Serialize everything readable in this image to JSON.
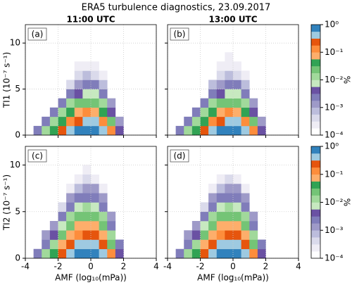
{
  "title": "ERA5 turbulence diagnostics, 23.09.2017",
  "colormap": {
    "clim": [
      0.0001,
      1
    ],
    "log_scale": true,
    "label": "%",
    "colors": [
      "#ffffff",
      "#efedf5",
      "#dadaeb",
      "#bcbddc",
      "#9e9ac8",
      "#807dba",
      "#6a51a3",
      "#c7e9c0",
      "#a1d99b",
      "#74c476",
      "#31a354",
      "#fdae6b",
      "#fd8d3c",
      "#e6550d",
      "#9ecae1",
      "#3182bd"
    ],
    "ticks": [
      {
        "value": 0.0001,
        "label": "10⁻⁴"
      },
      {
        "value": 0.001,
        "label": "10⁻³"
      },
      {
        "value": 0.01,
        "label": "10⁻²"
      },
      {
        "value": 0.1,
        "label": "10⁻¹"
      },
      {
        "value": 1,
        "label": "10⁰"
      }
    ]
  },
  "chart_data": [
    {
      "type": "heatmap",
      "title": "11:00 UTC",
      "panel_label": "(a)",
      "ylabel": "TI1 (10⁻⁷ s⁻¹)",
      "show_xticklabels": false,
      "show_yticklabels": true,
      "grid": true,
      "xlim": [
        -4,
        4
      ],
      "xticks": [
        -4,
        -2,
        0,
        2,
        4
      ],
      "ylim": [
        0,
        12
      ],
      "yticks": [
        0,
        5,
        10
      ],
      "x_bins": [
        -3.5,
        -3,
        -2.5,
        -2,
        -1.5,
        -1,
        -0.5,
        0,
        0.5,
        1,
        1.5,
        2
      ],
      "y_bins": [
        0,
        1,
        2,
        3,
        4,
        5,
        6,
        7,
        8,
        9,
        10
      ],
      "values": [
        [
          0.002,
          0.01,
          0.05,
          0.2,
          0.5,
          0.8,
          1.0,
          0.9,
          0.5,
          0.1,
          0.005
        ],
        [
          null,
          0.002,
          0.01,
          0.05,
          0.15,
          0.3,
          0.4,
          0.35,
          0.15,
          0.02,
          0.001
        ],
        [
          null,
          null,
          0.002,
          0.01,
          0.04,
          0.08,
          0.1,
          0.09,
          0.04,
          0.005,
          null
        ],
        [
          null,
          null,
          null,
          0.002,
          0.01,
          0.02,
          0.03,
          0.025,
          0.01,
          0.001,
          null
        ],
        [
          null,
          null,
          null,
          null,
          0.002,
          0.005,
          0.008,
          0.007,
          0.003,
          null,
          null
        ],
        [
          null,
          null,
          null,
          null,
          0.0005,
          0.0015,
          0.002,
          0.002,
          0.0008,
          null,
          null
        ],
        [
          null,
          null,
          null,
          null,
          null,
          0.0004,
          0.0006,
          0.0005,
          0.0002,
          null,
          null
        ],
        [
          null,
          null,
          null,
          null,
          null,
          0.0002,
          0.0003,
          0.0002,
          null,
          null,
          null
        ],
        [
          null,
          null,
          null,
          null,
          null,
          null,
          null,
          null,
          null,
          null,
          null
        ],
        [
          null,
          null,
          null,
          null,
          null,
          null,
          null,
          null,
          null,
          null,
          null
        ]
      ]
    },
    {
      "type": "heatmap",
      "title": "13:00 UTC",
      "panel_label": "(b)",
      "show_xticklabels": false,
      "show_yticklabels": false,
      "grid": true,
      "xlim": [
        -4,
        4
      ],
      "xticks": [
        -4,
        -2,
        0,
        2,
        4
      ],
      "ylim": [
        0,
        12
      ],
      "yticks": [
        0,
        5,
        10
      ],
      "x_bins": [
        -3.5,
        -3,
        -2.5,
        -2,
        -1.5,
        -1,
        -0.5,
        0,
        0.5,
        1,
        1.5,
        2
      ],
      "y_bins": [
        0,
        1,
        2,
        3,
        4,
        5,
        6,
        7,
        8,
        9,
        10
      ],
      "values": [
        [
          0.002,
          0.01,
          0.05,
          0.2,
          0.5,
          0.8,
          1.0,
          0.9,
          0.5,
          0.1,
          0.004
        ],
        [
          null,
          0.002,
          0.01,
          0.05,
          0.15,
          0.3,
          0.4,
          0.35,
          0.15,
          0.02,
          0.001
        ],
        [
          null,
          null,
          0.002,
          0.01,
          0.04,
          0.08,
          0.1,
          0.09,
          0.04,
          0.005,
          null
        ],
        [
          null,
          null,
          null,
          0.002,
          0.01,
          0.02,
          0.03,
          0.025,
          0.01,
          0.001,
          null
        ],
        [
          null,
          null,
          null,
          null,
          0.002,
          0.005,
          0.008,
          0.007,
          0.003,
          null,
          null
        ],
        [
          null,
          null,
          null,
          null,
          0.0006,
          0.0015,
          0.0025,
          0.002,
          0.0008,
          null,
          null
        ],
        [
          null,
          null,
          null,
          null,
          null,
          0.0004,
          0.0007,
          0.0005,
          0.0002,
          null,
          null
        ],
        [
          null,
          null,
          null,
          null,
          null,
          0.0002,
          0.0003,
          0.0002,
          null,
          null,
          null
        ],
        [
          null,
          null,
          null,
          null,
          null,
          null,
          0.0002,
          null,
          null,
          null,
          null
        ],
        [
          null,
          null,
          null,
          null,
          null,
          null,
          null,
          null,
          null,
          null,
          null
        ]
      ]
    },
    {
      "type": "heatmap",
      "panel_label": "(c)",
      "ylabel": "TI2 (10⁻⁷ s⁻¹)",
      "xlabel": "AMF (log₁₀(mPa))",
      "show_xticklabels": true,
      "show_yticklabels": true,
      "grid": true,
      "xlim": [
        -4,
        4
      ],
      "xticks": [
        -4,
        -2,
        0,
        2,
        4
      ],
      "ylim": [
        0,
        12
      ],
      "yticks": [
        0,
        5,
        10
      ],
      "x_bins": [
        -3.5,
        -3,
        -2.5,
        -2,
        -1.5,
        -1,
        -0.5,
        0,
        0.5,
        1,
        1.5,
        2
      ],
      "y_bins": [
        0,
        1,
        2,
        3,
        4,
        5,
        6,
        7,
        8,
        9,
        10
      ],
      "values": [
        [
          0.002,
          0.01,
          0.05,
          0.2,
          0.5,
          0.8,
          1.0,
          0.9,
          0.5,
          0.1,
          0.005
        ],
        [
          null,
          0.003,
          0.015,
          0.06,
          0.2,
          0.35,
          0.45,
          0.4,
          0.2,
          0.03,
          0.002
        ],
        [
          null,
          0.001,
          0.005,
          0.02,
          0.08,
          0.15,
          0.2,
          0.18,
          0.08,
          0.01,
          null
        ],
        [
          null,
          null,
          0.001,
          0.008,
          0.03,
          0.06,
          0.08,
          0.07,
          0.03,
          0.003,
          null
        ],
        [
          null,
          null,
          null,
          0.002,
          0.01,
          0.02,
          0.03,
          0.025,
          0.01,
          0.001,
          null
        ],
        [
          null,
          null,
          null,
          0.0005,
          0.003,
          0.007,
          0.01,
          0.009,
          0.003,
          null,
          null
        ],
        [
          null,
          null,
          null,
          null,
          0.001,
          0.002,
          0.003,
          0.003,
          0.001,
          null,
          null
        ],
        [
          null,
          null,
          null,
          null,
          0.0003,
          0.0008,
          0.001,
          0.001,
          0.0003,
          null,
          null
        ],
        [
          null,
          null,
          null,
          null,
          null,
          0.0003,
          0.0004,
          0.0003,
          null,
          null,
          null
        ],
        [
          null,
          null,
          null,
          null,
          null,
          null,
          0.0002,
          0.0001,
          null,
          null,
          null
        ]
      ]
    },
    {
      "type": "heatmap",
      "panel_label": "(d)",
      "xlabel": "AMF (log₁₀(mPa))",
      "show_xticklabels": true,
      "show_yticklabels": false,
      "grid": true,
      "xlim": [
        -4,
        4
      ],
      "xticks": [
        -4,
        -2,
        0,
        2,
        4
      ],
      "ylim": [
        0,
        12
      ],
      "yticks": [
        0,
        5,
        10
      ],
      "x_bins": [
        -3.5,
        -3,
        -2.5,
        -2,
        -1.5,
        -1,
        -0.5,
        0,
        0.5,
        1,
        1.5,
        2
      ],
      "y_bins": [
        0,
        1,
        2,
        3,
        4,
        5,
        6,
        7,
        8,
        9,
        10
      ],
      "values": [
        [
          0.002,
          0.01,
          0.05,
          0.2,
          0.5,
          0.8,
          1.0,
          0.9,
          0.5,
          0.1,
          0.004
        ],
        [
          null,
          0.003,
          0.015,
          0.06,
          0.2,
          0.35,
          0.45,
          0.4,
          0.2,
          0.03,
          0.002
        ],
        [
          null,
          0.001,
          0.005,
          0.02,
          0.08,
          0.15,
          0.2,
          0.18,
          0.08,
          0.01,
          null
        ],
        [
          null,
          null,
          0.001,
          0.008,
          0.03,
          0.06,
          0.08,
          0.07,
          0.03,
          0.003,
          null
        ],
        [
          null,
          null,
          null,
          0.002,
          0.01,
          0.02,
          0.03,
          0.025,
          0.01,
          0.001,
          null
        ],
        [
          null,
          null,
          null,
          0.0005,
          0.003,
          0.007,
          0.01,
          0.009,
          0.003,
          null,
          null
        ],
        [
          null,
          null,
          null,
          null,
          0.001,
          0.002,
          0.003,
          0.003,
          0.001,
          null,
          null
        ],
        [
          null,
          null,
          null,
          null,
          0.0003,
          0.0008,
          0.001,
          0.001,
          0.0003,
          null,
          null
        ],
        [
          null,
          null,
          null,
          null,
          null,
          0.0002,
          0.0004,
          0.0003,
          0.0001,
          null,
          null
        ],
        [
          null,
          null,
          null,
          null,
          null,
          null,
          0.0001,
          null,
          null,
          null,
          null
        ]
      ]
    }
  ]
}
